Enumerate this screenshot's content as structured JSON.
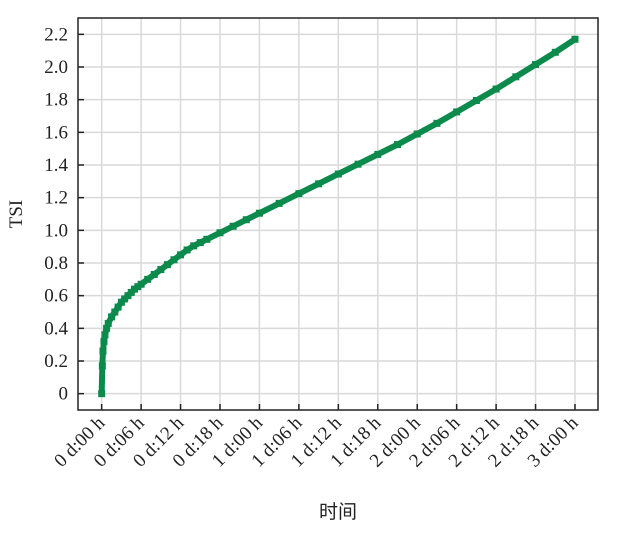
{
  "chart_data": {
    "type": "scatter",
    "x_label": "时间",
    "y_label": "TSI",
    "x": [
      0,
      0.1,
      0.2,
      0.35,
      0.5,
      0.75,
      1,
      1.5,
      2,
      2.5,
      3,
      3.5,
      4,
      4.5,
      5,
      5.5,
      6,
      7,
      8,
      9,
      10,
      11,
      12,
      13,
      14,
      15,
      16,
      18,
      20,
      22,
      24,
      27,
      30,
      33,
      36,
      39,
      42,
      45,
      48,
      51,
      54,
      57,
      60,
      63,
      66,
      69,
      72
    ],
    "series": [
      {
        "color": "#0b8a4c",
        "values": [
          0.0,
          0.17,
          0.26,
          0.32,
          0.36,
          0.4,
          0.43,
          0.47,
          0.5,
          0.53,
          0.56,
          0.58,
          0.6,
          0.62,
          0.64,
          0.655,
          0.67,
          0.7,
          0.73,
          0.76,
          0.79,
          0.82,
          0.85,
          0.88,
          0.905,
          0.925,
          0.945,
          0.985,
          1.025,
          1.065,
          1.105,
          1.165,
          1.225,
          1.285,
          1.345,
          1.405,
          1.465,
          1.525,
          1.59,
          1.655,
          1.725,
          1.795,
          1.865,
          1.94,
          2.015,
          2.09,
          2.17
        ]
      }
    ],
    "xlim": [
      -3.6,
      75.5
    ],
    "ylim": [
      -0.1,
      2.3
    ],
    "xticks": [
      {
        "value": 0,
        "label": "0 d:00 h"
      },
      {
        "value": 6,
        "label": "0 d:06 h"
      },
      {
        "value": 12,
        "label": "0 d:12 h"
      },
      {
        "value": 18,
        "label": "0 d:18 h"
      },
      {
        "value": 24,
        "label": "1 d:00 h"
      },
      {
        "value": 30,
        "label": "1 d:06 h"
      },
      {
        "value": 36,
        "label": "1 d:12 h"
      },
      {
        "value": 42,
        "label": "1 d:18 h"
      },
      {
        "value": 48,
        "label": "2 d:00 h"
      },
      {
        "value": 54,
        "label": "2 d:06 h"
      },
      {
        "value": 60,
        "label": "2 d:12 h"
      },
      {
        "value": 66,
        "label": "2 d:18 h"
      },
      {
        "value": 72,
        "label": "3 d:00 h"
      }
    ],
    "yticks": [
      0,
      0.2,
      0.4,
      0.6,
      0.8,
      {
        "value": 1.0,
        "label": "1.0"
      },
      1.2,
      1.4,
      1.6,
      1.8,
      {
        "value": 2.0,
        "label": "2.0"
      },
      2.2
    ],
    "grid": true
  }
}
